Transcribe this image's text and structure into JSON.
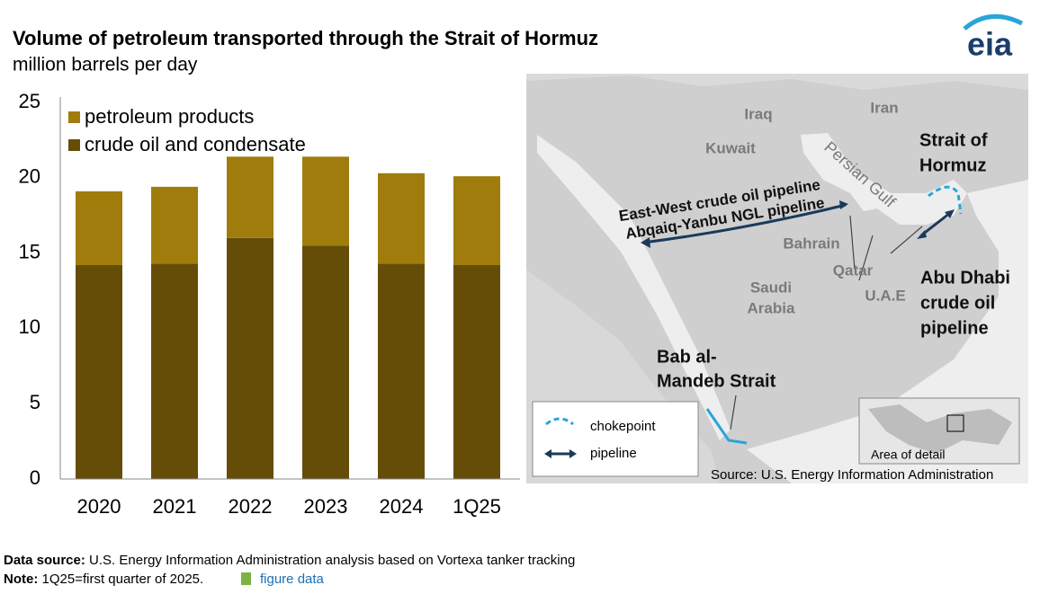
{
  "chart_data": {
    "type": "stacked_bar",
    "title": "Volume of petroleum transported through the Strait of Hormuz",
    "subtitle": "million barrels per day",
    "categories": [
      "2020",
      "2021",
      "2022",
      "2023",
      "2024",
      "1Q25"
    ],
    "series": [
      {
        "name": "crude oil and condensate",
        "color": "#654d08",
        "values": [
          14.2,
          14.3,
          16.0,
          15.5,
          14.3,
          14.2
        ]
      },
      {
        "name": "petroleum products",
        "color": "#9f7c0c",
        "values": [
          4.9,
          5.1,
          5.4,
          5.9,
          6.0,
          5.9
        ]
      }
    ],
    "ylim": [
      0,
      25
    ],
    "yticks": [
      0,
      5,
      10,
      15,
      20,
      25
    ],
    "grid": false
  },
  "logo": "eia",
  "map": {
    "iraq": "Iraq",
    "iran": "Iran",
    "kuwait": "Kuwait",
    "persian_gulf": "Persian Gulf",
    "strait_of_hormuz": [
      "Strait of",
      "Hormuz"
    ],
    "pipeline_east_west": "East-West crude oil pipeline",
    "pipeline_abqaiq": "Abqaiq-Yanbu NGL pipeline",
    "bahrain": "Bahrain",
    "qatar": "Qatar",
    "uae": "U.A.E",
    "saudi_arabia": [
      "Saudi",
      "Arabia"
    ],
    "abu_dhabi": [
      "Abu Dhabi",
      "crude oil",
      "pipeline"
    ],
    "bab_al_mandeb": [
      "Bab al-",
      "Mandeb Strait"
    ],
    "legend": {
      "chokepoint": "chokepoint",
      "pipeline": "pipeline"
    },
    "inset": "Area of detail",
    "source": "Source: U.S. Energy Information Administration"
  },
  "footer": {
    "data_source_label": "Data source:",
    "data_source": "U.S. Energy Information Administration analysis based on Vortexa tanker tracking",
    "note_label": "Note:",
    "note": "1Q25=first quarter of 2025.",
    "figure_data": "figure data"
  }
}
